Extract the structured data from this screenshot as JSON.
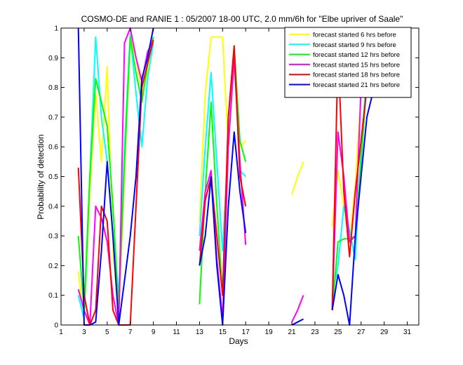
{
  "chart_data": {
    "type": "line",
    "title": "COSMO-DE and RANIE 1 : 05/2007 18-00 UTC, 2.0 mm/6h for \"Elbe upriver of Saale\"",
    "xlabel": "Days",
    "ylabel": "Probability of detection",
    "xlim": [
      1,
      32
    ],
    "ylim": [
      0,
      1
    ],
    "x_ticks": [
      1,
      3,
      5,
      7,
      9,
      11,
      13,
      15,
      17,
      19,
      21,
      23,
      25,
      27,
      29,
      31
    ],
    "y_ticks": [
      0,
      0.1,
      0.2,
      0.3,
      0.4,
      0.5,
      0.6,
      0.7,
      0.8,
      0.9,
      1
    ],
    "legend_position": "top-right",
    "series": [
      {
        "name": "forecast started 6 hrs before",
        "color": "#ffff00",
        "points": [
          [
            2.5,
            0.18
          ],
          [
            3,
            0.01
          ],
          [
            3.5,
            0.45
          ],
          [
            4,
            0.78
          ],
          [
            4.5,
            0.55
          ],
          [
            5,
            0.87
          ],
          [
            5.5,
            0.25
          ],
          [
            6,
            0.02
          ],
          [
            6.5,
            0.52
          ],
          [
            7,
            0.97
          ],
          [
            7.5,
            0.9
          ],
          [
            8,
            0.78
          ],
          [
            8.5,
            0.85
          ],
          [
            9,
            0.97
          ],
          null,
          [
            13,
            0.35
          ],
          [
            13.5,
            0.78
          ],
          [
            14,
            0.97
          ],
          [
            14.5,
            0.97
          ],
          [
            15,
            0.97
          ],
          [
            15.5,
            0.6
          ],
          [
            16,
            0.88
          ],
          [
            16.5,
            0.6
          ],
          [
            17,
            0.62
          ],
          null,
          [
            21,
            0.44
          ],
          [
            21.5,
            0.5
          ],
          [
            22,
            0.55
          ],
          null,
          [
            24.5,
            0.33
          ],
          [
            25,
            0.52
          ],
          [
            25.5,
            0.4
          ],
          [
            26,
            0.28
          ],
          [
            26.5,
            0.47
          ],
          [
            27,
            0.78
          ],
          [
            27.5,
            0.92
          ],
          [
            28,
            0.995
          ],
          [
            28.5,
            0.93
          ],
          [
            29,
            0.93
          ]
        ]
      },
      {
        "name": "forecast started 9 hrs before",
        "color": "#00ffff",
        "points": [
          [
            2.5,
            0.1
          ],
          [
            3,
            0.02
          ],
          [
            3.5,
            0.5
          ],
          [
            4,
            0.97
          ],
          [
            4.5,
            0.7
          ],
          [
            5,
            0.55
          ],
          [
            5.5,
            0.3
          ],
          [
            6,
            0.1
          ],
          [
            6.5,
            0.6
          ],
          [
            7,
            0.98
          ],
          [
            7.5,
            0.78
          ],
          [
            8,
            0.6
          ],
          [
            8.5,
            0.83
          ],
          [
            9,
            0.95
          ],
          null,
          [
            13,
            0.3
          ],
          [
            13.5,
            0.6
          ],
          [
            14,
            0.85
          ],
          [
            14.5,
            0.55
          ],
          [
            15,
            0.25
          ],
          [
            15.5,
            0.62
          ],
          [
            16,
            0.9
          ],
          [
            16.5,
            0.52
          ],
          [
            17,
            0.5
          ],
          null,
          [
            24.5,
            0.1
          ],
          [
            25,
            0.2
          ],
          [
            25.5,
            0.4
          ],
          [
            26,
            0.32
          ],
          [
            26.5,
            0.22
          ],
          [
            27,
            0.6
          ],
          [
            27.5,
            0.85
          ],
          [
            28,
            0.96
          ],
          [
            28.5,
            0.92
          ],
          [
            29,
            0.9
          ]
        ]
      },
      {
        "name": "forecast started 12 hrs before",
        "color": "#00ff00",
        "points": [
          [
            2.5,
            0.3
          ],
          [
            3,
            0.05
          ],
          [
            3.5,
            0.5
          ],
          [
            4,
            0.83
          ],
          [
            4.5,
            0.75
          ],
          [
            5,
            0.67
          ],
          [
            5.5,
            0.4
          ],
          [
            6,
            0.05
          ],
          [
            6.5,
            0.55
          ],
          [
            7,
            0.97
          ],
          [
            7.5,
            0.85
          ],
          [
            8,
            0.75
          ],
          [
            8.5,
            0.88
          ],
          [
            9,
            0.97
          ],
          null,
          [
            13,
            0.07
          ],
          [
            13.5,
            0.45
          ],
          [
            14,
            0.75
          ],
          [
            14.5,
            0.4
          ],
          [
            15,
            0.1
          ],
          [
            15.5,
            0.7
          ],
          [
            16,
            0.94
          ],
          [
            16.5,
            0.62
          ],
          [
            17,
            0.55
          ],
          null,
          [
            24.5,
            0.05
          ],
          [
            25,
            0.28
          ],
          [
            25.5,
            0.29
          ],
          [
            26,
            0.29
          ],
          [
            26.5,
            0.3
          ],
          [
            27,
            0.55
          ],
          [
            27.5,
            0.82
          ],
          [
            28,
            0.97
          ],
          [
            28.5,
            0.92
          ],
          [
            29,
            0.9
          ]
        ]
      },
      {
        "name": "forecast started 15 hrs before",
        "color": "#ff00ff",
        "points": [
          [
            2.5,
            0.12
          ],
          [
            3,
            0.05
          ],
          [
            3.5,
            0.0
          ],
          [
            4,
            0.4
          ],
          [
            4.5,
            0.36
          ],
          [
            5,
            0.28
          ],
          [
            5.5,
            0.1
          ],
          [
            6,
            0.0
          ],
          [
            6.5,
            0.95
          ],
          [
            7,
            1.0
          ],
          [
            7.5,
            0.9
          ],
          [
            8,
            0.82
          ],
          [
            8.5,
            0.92
          ],
          [
            9,
            0.96
          ],
          null,
          [
            13,
            0.25
          ],
          [
            13.5,
            0.45
          ],
          [
            14,
            0.52
          ],
          [
            14.5,
            0.22
          ],
          [
            15,
            0.02
          ],
          [
            15.5,
            0.6
          ],
          [
            16,
            0.9
          ],
          [
            16.5,
            0.55
          ],
          [
            17,
            0.27
          ],
          null,
          [
            21,
            0.01
          ],
          [
            21.5,
            0.05
          ],
          [
            22,
            0.1
          ],
          null,
          [
            24.5,
            0.05
          ],
          [
            25,
            0.65
          ],
          [
            25.5,
            0.5
          ],
          [
            26,
            0.28
          ],
          [
            26.5,
            0.3
          ],
          [
            27,
            0.8
          ],
          [
            27.5,
            0.92
          ],
          [
            28,
            0.97
          ],
          [
            28.5,
            0.93
          ],
          [
            29,
            0.9
          ]
        ]
      },
      {
        "name": "forecast started 18 hrs before",
        "color": "#ff0000",
        "points": [
          [
            2.5,
            0.53
          ],
          [
            3,
            0.1
          ],
          [
            3.5,
            0.0
          ],
          [
            4,
            0.05
          ],
          [
            4.5,
            0.4
          ],
          [
            5,
            0.35
          ],
          [
            5.5,
            0.05
          ],
          [
            6,
            0.0
          ],
          [
            6.5,
            0.0
          ],
          [
            7,
            0.0
          ],
          [
            7.5,
            0.4
          ],
          [
            8,
            0.8
          ],
          [
            8.5,
            0.88
          ],
          [
            9,
            0.96
          ],
          null,
          [
            13,
            0.2
          ],
          [
            13.5,
            0.42
          ],
          [
            14,
            0.5
          ],
          [
            14.5,
            0.3
          ],
          [
            15,
            0.1
          ],
          [
            15.5,
            0.7
          ],
          [
            16,
            0.94
          ],
          [
            16.5,
            0.5
          ],
          [
            17,
            0.4
          ],
          null,
          [
            24.5,
            0.05
          ],
          [
            25,
            0.92
          ],
          [
            25.5,
            0.45
          ],
          [
            26,
            0.23
          ],
          [
            26.5,
            0.45
          ],
          [
            27,
            0.62
          ],
          [
            27.5,
            0.8
          ],
          [
            28,
            0.85
          ],
          [
            28.5,
            0.87
          ],
          [
            29,
            0.88
          ]
        ]
      },
      {
        "name": "forecast started 21 hrs before",
        "color": "#0000ff",
        "points": [
          [
            2.5,
            1.0
          ],
          [
            3,
            0.0
          ],
          [
            3.5,
            0.0
          ],
          [
            4,
            0.01
          ],
          [
            4.5,
            0.25
          ],
          [
            5,
            0.55
          ],
          [
            5.5,
            0.3
          ],
          [
            6,
            0.0
          ],
          [
            6.5,
            0.15
          ],
          [
            7,
            0.3
          ],
          [
            7.5,
            0.5
          ],
          [
            8,
            0.83
          ],
          [
            8.5,
            0.9
          ],
          [
            9,
            1.0
          ],
          null,
          [
            13,
            0.2
          ],
          [
            13.5,
            0.3
          ],
          [
            14,
            0.5
          ],
          [
            14.5,
            0.2
          ],
          [
            15,
            0.0
          ],
          [
            15.5,
            0.4
          ],
          [
            16,
            0.65
          ],
          [
            16.5,
            0.45
          ],
          [
            17,
            0.31
          ],
          null,
          [
            21,
            0.0
          ],
          [
            21.5,
            0.01
          ],
          [
            22,
            0.02
          ],
          null,
          [
            24.5,
            0.05
          ],
          [
            25,
            0.17
          ],
          [
            25.5,
            0.1
          ],
          [
            26,
            0.0
          ],
          [
            26.5,
            0.3
          ],
          [
            27,
            0.5
          ],
          [
            27.5,
            0.7
          ],
          [
            28,
            0.78
          ],
          [
            28.5,
            0.85
          ],
          [
            29,
            0.89
          ]
        ]
      }
    ]
  }
}
